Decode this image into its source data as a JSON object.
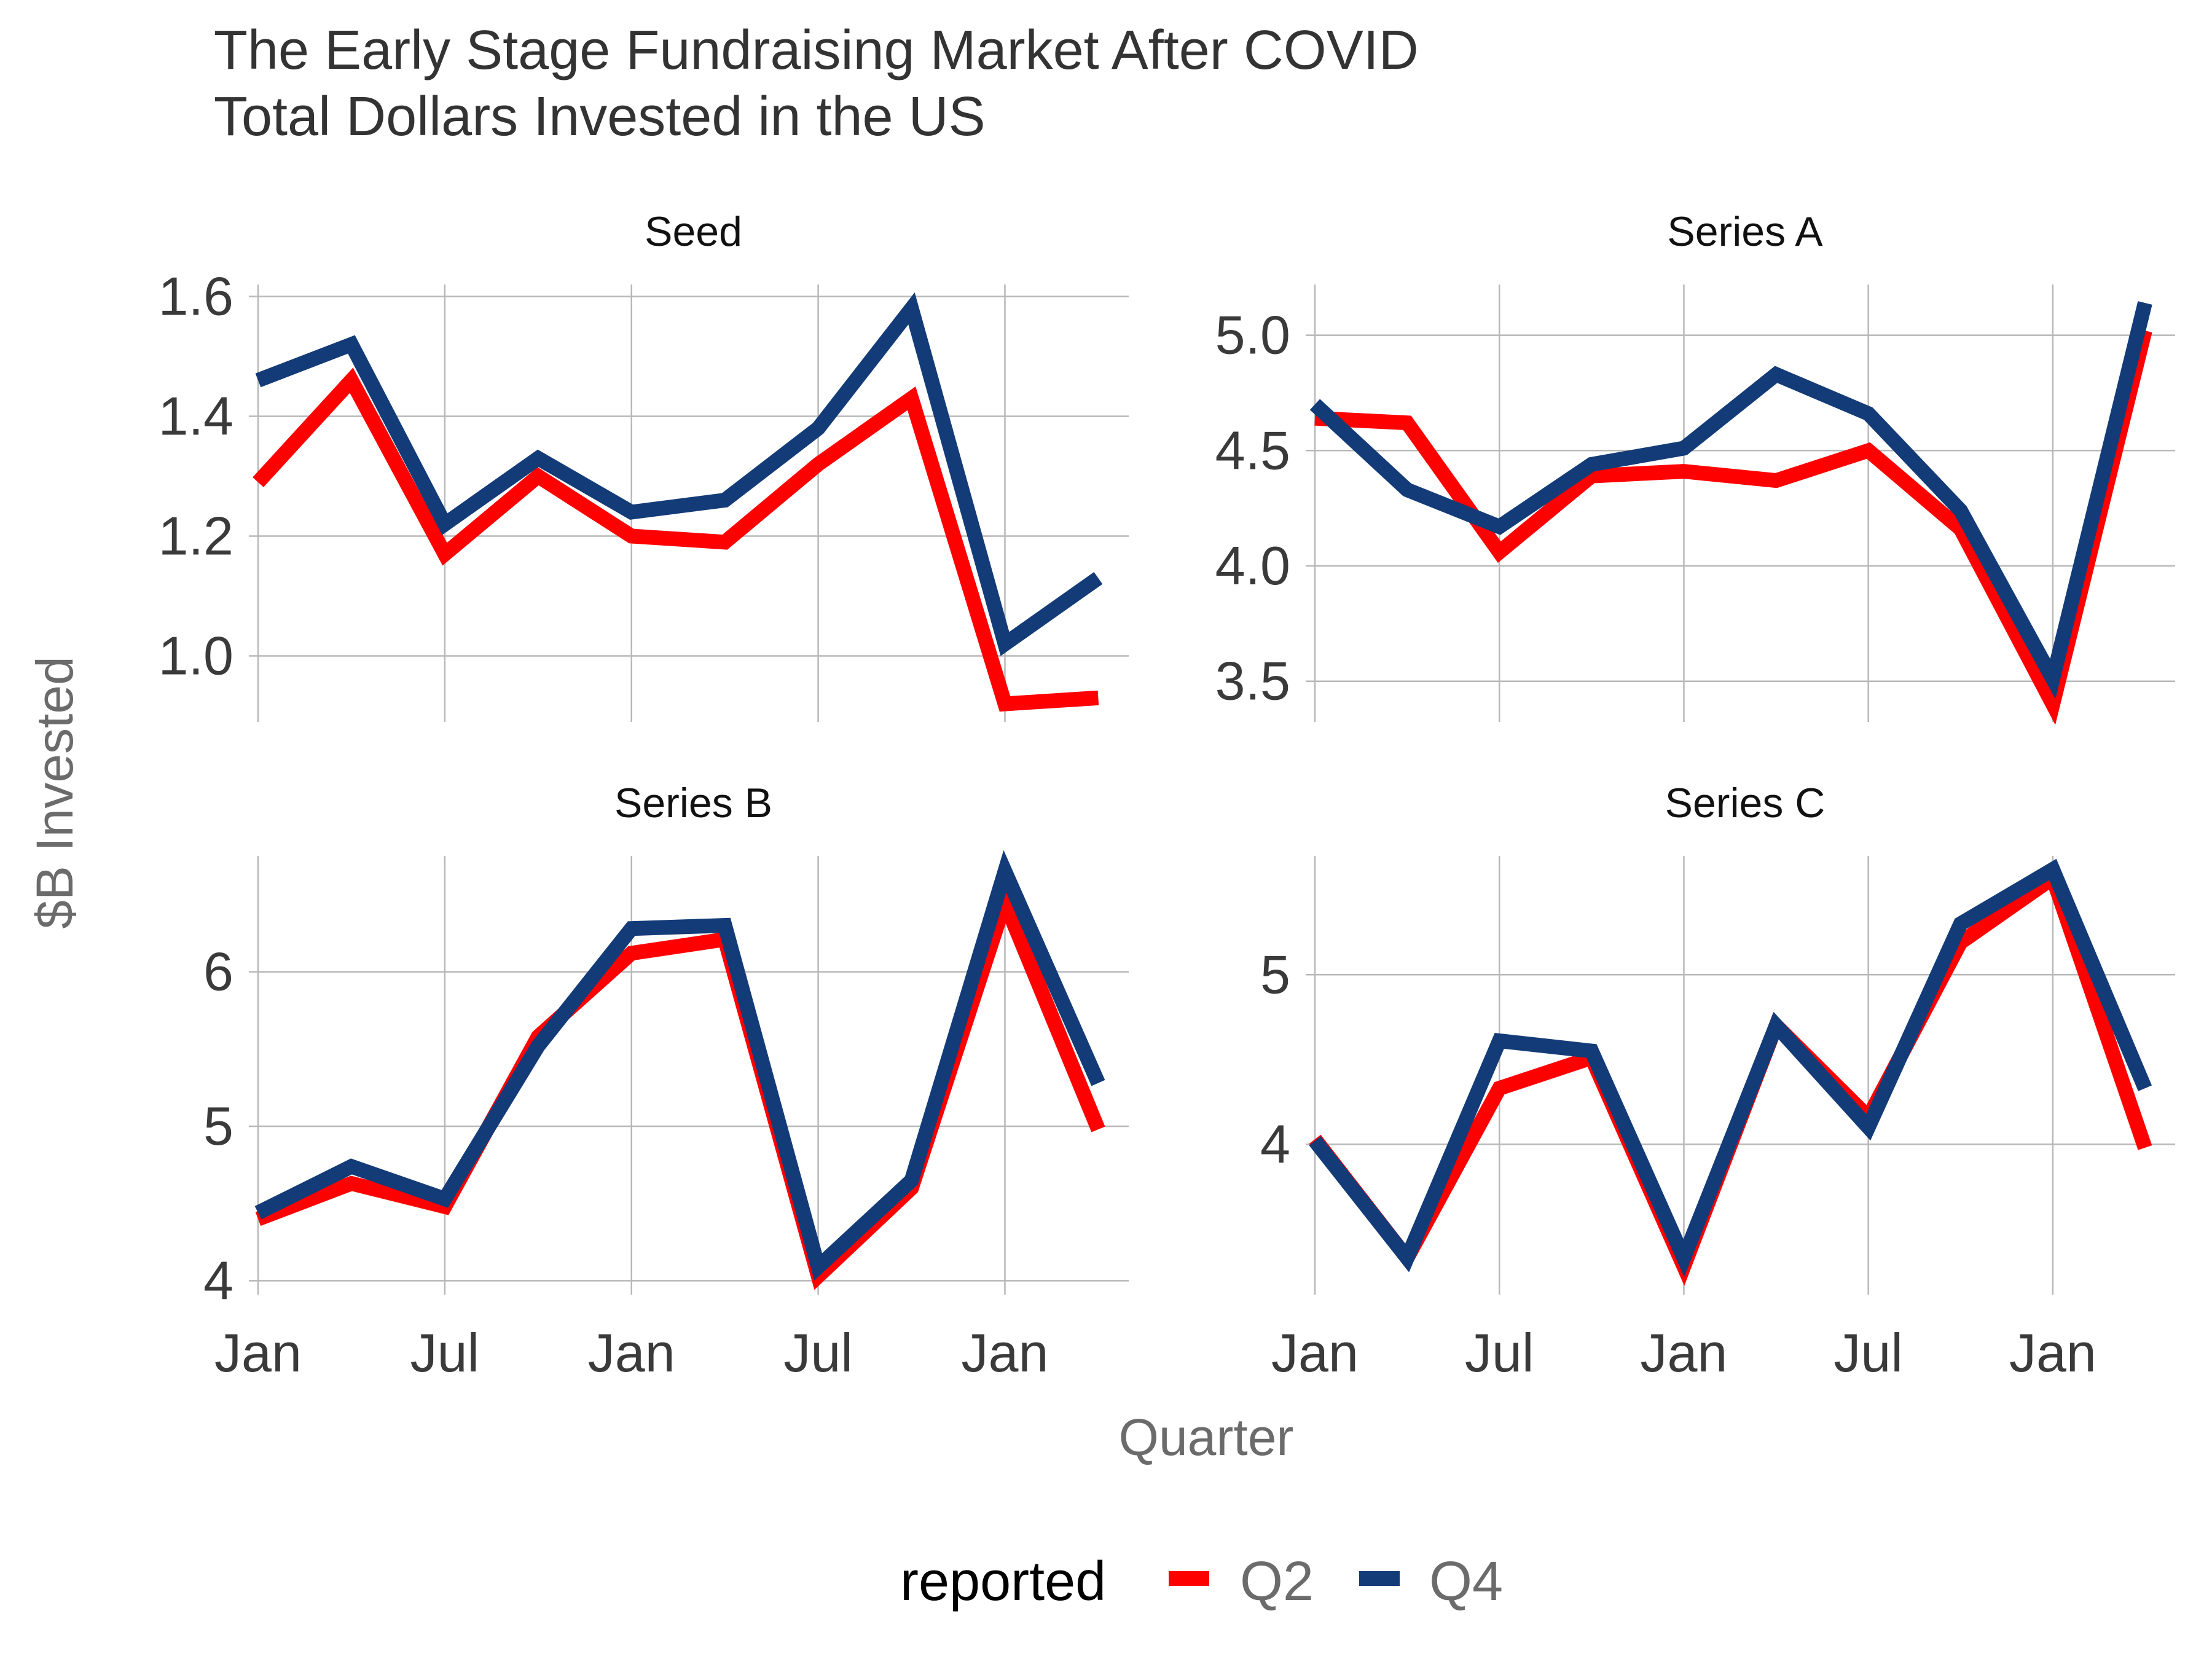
{
  "chart_data": {
    "type": "line",
    "title": "The Early Stage Fundraising Market After COVID",
    "subtitle": "Total Dollars Invested in the US",
    "xlabel": "Quarter",
    "ylabel": "$B Invested",
    "x": [
      "2019-01",
      "2019-04",
      "2019-07",
      "2019-10",
      "2020-01",
      "2020-04",
      "2020-07",
      "2020-10",
      "2021-01",
      "2021-04"
    ],
    "x_tick_labels": [
      "Jan",
      "Jul",
      "Jan",
      "Jul",
      "Jan"
    ],
    "x_tick_dates": [
      "2019-01",
      "2019-07",
      "2020-01",
      "2020-07",
      "2021-01"
    ],
    "legend": {
      "title": "reported",
      "position": "bottom",
      "entries": [
        "Q2",
        "Q4"
      ]
    },
    "colors": {
      "Q2": "#ff0000",
      "Q4": "#133b77"
    },
    "grid": true,
    "facets": [
      {
        "name": "Seed",
        "ylim": [
          0.9,
          1.62
        ],
        "y_ticks": [
          1.0,
          1.2,
          1.4,
          1.6
        ],
        "y_tick_labels": [
          "1.0",
          "1.2",
          "1.4",
          "1.6"
        ],
        "series": [
          {
            "name": "Q2",
            "values": [
              1.29,
              1.46,
              1.17,
              1.3,
              1.2,
              1.19,
              1.32,
              1.43,
              0.92,
              0.93
            ]
          },
          {
            "name": "Q4",
            "values": [
              1.46,
              1.52,
              1.22,
              1.33,
              1.24,
              1.26,
              1.38,
              1.58,
              1.02,
              1.13
            ]
          }
        ]
      },
      {
        "name": "Series A",
        "ylim": [
          3.35,
          5.22
        ],
        "y_ticks": [
          3.5,
          4.0,
          4.5,
          5.0
        ],
        "y_tick_labels": [
          "3.5",
          "4.0",
          "4.5",
          "5.0"
        ],
        "series": [
          {
            "name": "Q2",
            "values": [
              4.64,
              4.62,
              4.06,
              4.39,
              4.41,
              4.37,
              4.5,
              4.16,
              3.4,
              5.02
            ]
          },
          {
            "name": "Q4",
            "values": [
              4.7,
              4.33,
              4.17,
              4.44,
              4.51,
              4.83,
              4.66,
              4.24,
              3.51,
              5.14
            ]
          }
        ]
      },
      {
        "name": "Series B",
        "ylim": [
          3.95,
          6.75
        ],
        "y_ticks": [
          4,
          5,
          6
        ],
        "y_tick_labels": [
          "4",
          "5",
          "6"
        ],
        "series": [
          {
            "name": "Q2",
            "values": [
              4.4,
              4.63,
              4.48,
              5.58,
              6.12,
              6.21,
              4.03,
              4.6,
              6.45,
              4.98
            ]
          },
          {
            "name": "Q4",
            "values": [
              4.44,
              4.74,
              4.53,
              5.52,
              6.28,
              6.3,
              4.09,
              4.65,
              6.65,
              5.28
            ]
          }
        ]
      },
      {
        "name": "Series C",
        "ylim": [
          3.15,
          5.7
        ],
        "y_ticks": [
          4,
          5
        ],
        "y_tick_labels": [
          "4",
          "5"
        ],
        "series": [
          {
            "name": "Q2",
            "values": [
              4.03,
              3.33,
              4.33,
              4.51,
              3.28,
              4.7,
              4.16,
              5.19,
              5.57,
              3.98
            ]
          },
          {
            "name": "Q4",
            "values": [
              4.02,
              3.33,
              4.61,
              4.55,
              3.33,
              4.7,
              4.1,
              5.3,
              5.62,
              4.33
            ]
          }
        ]
      }
    ]
  }
}
